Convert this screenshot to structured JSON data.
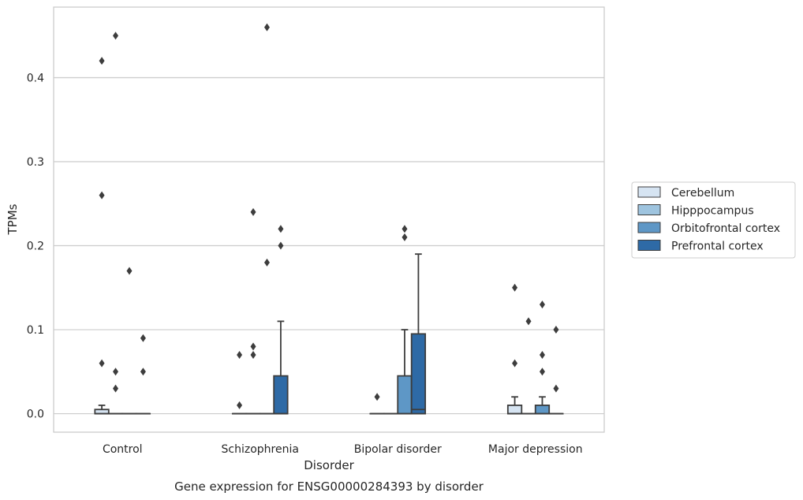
{
  "chart_data": {
    "type": "box",
    "caption": "Gene expression for ENSG00000284393 by disorder",
    "xlabel": "Disorder",
    "ylabel": "TPMs",
    "categories": [
      "Control",
      "Schizophrenia",
      "Bipolar disorder",
      "Major depression"
    ],
    "ylim": [
      -0.022,
      0.484
    ],
    "yticks": [
      0.0,
      0.1,
      0.2,
      0.3,
      0.4
    ],
    "ytick_labels": [
      "0.0",
      "0.1",
      "0.2",
      "0.3",
      "0.4"
    ],
    "grid": "horizontal",
    "legend_position": "right",
    "series": [
      {
        "name": "Cerebellum",
        "color": "#d6e4f2",
        "boxes": [
          {
            "q1": 0.0,
            "median": 0.0,
            "q3": 0.005,
            "whisker_low": 0.0,
            "whisker_high": 0.01,
            "outliers": [
              0.42,
              0.26,
              0.06
            ]
          },
          {
            "q1": 0.0,
            "median": 0.0,
            "q3": 0.0,
            "whisker_low": 0.0,
            "whisker_high": 0.0,
            "outliers": [
              0.07,
              0.01
            ]
          },
          {
            "q1": 0.0,
            "median": 0.0,
            "q3": 0.0,
            "whisker_low": 0.0,
            "whisker_high": 0.0,
            "outliers": [
              0.02
            ]
          },
          {
            "q1": 0.0,
            "median": 0.0,
            "q3": 0.01,
            "whisker_low": 0.0,
            "whisker_high": 0.02,
            "outliers": [
              0.15,
              0.06
            ]
          }
        ]
      },
      {
        "name": "Hipppocampus",
        "color": "#9ec4df",
        "boxes": [
          {
            "q1": 0.0,
            "median": 0.0,
            "q3": 0.0,
            "whisker_low": 0.0,
            "whisker_high": 0.0,
            "outliers": [
              0.45,
              0.05,
              0.03
            ]
          },
          {
            "q1": 0.0,
            "median": 0.0,
            "q3": 0.0,
            "whisker_low": 0.0,
            "whisker_high": 0.0,
            "outliers": [
              0.24,
              0.08,
              0.07
            ]
          },
          {
            "q1": 0.0,
            "median": 0.0,
            "q3": 0.0,
            "whisker_low": 0.0,
            "whisker_high": 0.0,
            "outliers": []
          },
          {
            "q1": 0.0,
            "median": 0.0,
            "q3": 0.0,
            "whisker_low": 0.0,
            "whisker_high": 0.0,
            "outliers": [
              0.11
            ]
          }
        ]
      },
      {
        "name": "Orbitofrontal cortex",
        "color": "#5e97c6",
        "boxes": [
          {
            "q1": 0.0,
            "median": 0.0,
            "q3": 0.0,
            "whisker_low": 0.0,
            "whisker_high": 0.0,
            "outliers": [
              0.17
            ]
          },
          {
            "q1": 0.0,
            "median": 0.0,
            "q3": 0.0,
            "whisker_low": 0.0,
            "whisker_high": 0.0,
            "outliers": [
              0.46,
              0.18
            ]
          },
          {
            "q1": 0.0,
            "median": 0.0,
            "q3": 0.045,
            "whisker_low": 0.0,
            "whisker_high": 0.1,
            "outliers": [
              0.22,
              0.21
            ]
          },
          {
            "q1": 0.0,
            "median": 0.0,
            "q3": 0.01,
            "whisker_low": 0.0,
            "whisker_high": 0.02,
            "outliers": [
              0.13,
              0.07,
              0.05
            ]
          }
        ]
      },
      {
        "name": "Prefrontal cortex",
        "color": "#2e6aa6",
        "boxes": [
          {
            "q1": 0.0,
            "median": 0.0,
            "q3": 0.0,
            "whisker_low": 0.0,
            "whisker_high": 0.0,
            "outliers": [
              0.09,
              0.05
            ]
          },
          {
            "q1": 0.0,
            "median": 0.0,
            "q3": 0.045,
            "whisker_low": 0.0,
            "whisker_high": 0.11,
            "outliers": [
              0.22,
              0.2
            ]
          },
          {
            "q1": 0.0,
            "median": 0.005,
            "q3": 0.095,
            "whisker_low": 0.0,
            "whisker_high": 0.19,
            "outliers": []
          },
          {
            "q1": 0.0,
            "median": 0.0,
            "q3": 0.0,
            "whisker_low": 0.0,
            "whisker_high": 0.0,
            "outliers": [
              0.1,
              0.03
            ]
          }
        ]
      }
    ]
  }
}
